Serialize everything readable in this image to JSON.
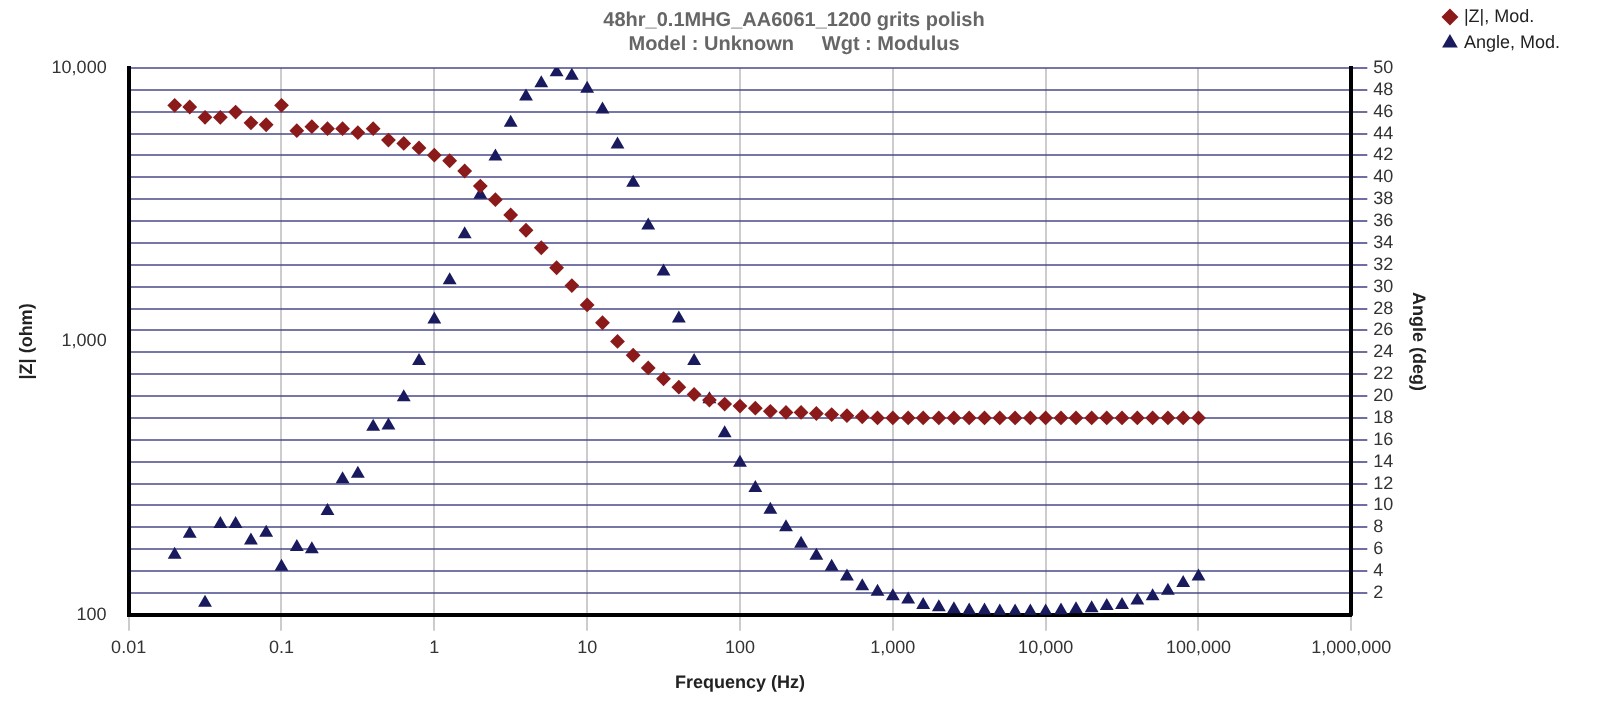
{
  "chart_data": {
    "type": "scatter",
    "title": "48hr_0.1MHG_AA6061_1200 grits polish",
    "subtitle": "Model : Unknown     Wgt : Modulus",
    "xlabel": "Frequency (Hz)",
    "ylabel": "|Z| (ohm)",
    "y2label": "Angle (deg)",
    "log": "xy",
    "grid": true,
    "legend": "top right",
    "xlim": [
      0.01,
      1000000
    ],
    "xticks": [
      0.01,
      0.1,
      1,
      10,
      100,
      {
        "value": 1000,
        "label": "1,000"
      },
      {
        "value": 10000,
        "label": "10,000"
      },
      {
        "value": 100000,
        "label": "100,000"
      },
      {
        "value": 1000000,
        "label": "1,000,000"
      }
    ],
    "ylim": [
      100,
      10000
    ],
    "yticks": [
      100,
      {
        "value": 1000,
        "label": "1,000"
      },
      {
        "value": 10000,
        "label": "10,000"
      }
    ],
    "y2lim": [
      0,
      50
    ],
    "y2ticks": [
      2,
      4,
      6,
      8,
      10,
      12,
      14,
      16,
      18,
      20,
      22,
      24,
      26,
      28,
      30,
      32,
      34,
      36,
      38,
      40,
      42,
      44,
      46,
      48,
      50
    ],
    "x": [
      0.02,
      0.0251,
      0.0316,
      0.0398,
      0.0501,
      0.0631,
      0.0794,
      0.1,
      0.126,
      0.158,
      0.2,
      0.251,
      0.316,
      0.398,
      0.501,
      0.631,
      0.794,
      1,
      1.26,
      1.58,
      2,
      2.51,
      3.16,
      3.98,
      5.01,
      6.31,
      7.94,
      10,
      12.6,
      15.8,
      20,
      25.1,
      31.6,
      39.8,
      50.1,
      63.1,
      79.4,
      100,
      126,
      158,
      200,
      251,
      316,
      398,
      501,
      631,
      794,
      1000,
      1260,
      1580,
      2000,
      2510,
      3160,
      3980,
      5010,
      6310,
      7940,
      10000,
      12600,
      15800,
      20000,
      25100,
      31600,
      39800,
      50100,
      63100,
      79400,
      100000
    ],
    "series": [
      {
        "name": "|Z|, Mod.",
        "color": "#8b1a1a",
        "marker": "diamond",
        "values": [
          7300,
          7200,
          6600,
          6600,
          6900,
          6300,
          6200,
          7300,
          5900,
          6100,
          6000,
          6000,
          5800,
          6000,
          5450,
          5300,
          5100,
          4800,
          4580,
          4200,
          3700,
          3300,
          2900,
          2550,
          2200,
          1860,
          1600,
          1360,
          1170,
          1000,
          890,
          800,
          730,
          680,
          640,
          610,
          590,
          580,
          570,
          555,
          550,
          550,
          545,
          540,
          535,
          530,
          525,
          525,
          525,
          525,
          525,
          525,
          525,
          525,
          525,
          525,
          525,
          525,
          525,
          525,
          525,
          525,
          525,
          525,
          525,
          525,
          525,
          525
        ]
      },
      {
        "name": "Angle, Mod.",
        "color": "#1a1a5e",
        "marker": "triangle",
        "axis": "y2",
        "values": [
          5.5,
          7.4,
          1.1,
          8.3,
          8.3,
          6.8,
          7.5,
          4.4,
          6.2,
          6.0,
          9.5,
          12.4,
          12.9,
          17.2,
          17.3,
          19.9,
          23.2,
          27,
          30.6,
          34.8,
          38.4,
          41.9,
          45,
          47.4,
          48.6,
          49.6,
          49.3,
          48.1,
          46.2,
          43,
          39.5,
          35.6,
          31.4,
          27.1,
          23.2,
          19.7,
          16.6,
          13.9,
          11.6,
          9.6,
          8,
          6.5,
          5.4,
          4.4,
          3.5,
          2.6,
          2.1,
          1.7,
          1.4,
          0.9,
          0.7,
          0.5,
          0.4,
          0.4,
          0.3,
          0.3,
          0.3,
          0.3,
          0.4,
          0.5,
          0.6,
          0.8,
          0.9,
          1.3,
          1.7,
          2.2,
          2.9,
          3.5
        ]
      }
    ]
  }
}
